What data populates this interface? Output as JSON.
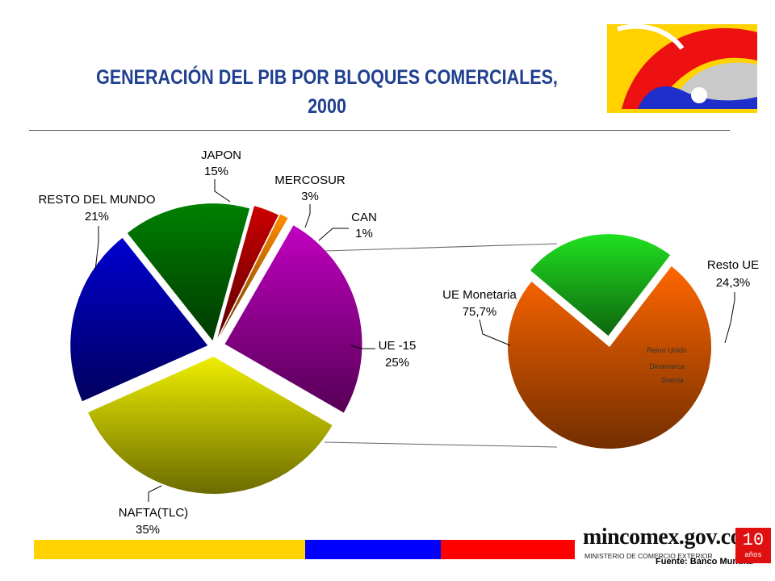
{
  "title_line1": "GENERACIÓN DEL PIB POR BLOQUES COMERCIALES,",
  "title_line2": "2000",
  "source": "Fuente: Banco Mundial",
  "site": "mincomex.gov.co",
  "ministry": "MINISTERIO DE COMERCIO EXTERIOR",
  "badge_number": "10",
  "badge_text": "años",
  "footer_colors": [
    "#FFD200",
    "#0000FF",
    "#FF0000"
  ],
  "chart_data": [
    {
      "type": "pie",
      "title": "GENERACIÓN DEL PIB POR BLOQUES COMERCIALES, 2000",
      "slices": [
        {
          "name": "UE -15",
          "value": 25,
          "label": "25%",
          "color": "#C000C0"
        },
        {
          "name": "NAFTA(TLC)",
          "value": 35,
          "label": "35%",
          "color": "#EEEE00"
        },
        {
          "name": "RESTO DEL MUNDO",
          "value": 21,
          "label": "21%",
          "color": "#0000D0"
        },
        {
          "name": "JAPON",
          "value": 15,
          "label": "15%",
          "color": "#008000"
        },
        {
          "name": "MERCOSUR",
          "value": 3,
          "label": "3%",
          "color": "#CC0000"
        },
        {
          "name": "CAN",
          "value": 1,
          "label": "1%",
          "color": "#FF8C00"
        }
      ]
    },
    {
      "type": "pie",
      "title": "UE -15",
      "slices": [
        {
          "name": "UE Monetaria",
          "value": 75.7,
          "label": "75,7%",
          "color": "#FF6600"
        },
        {
          "name": "Resto UE",
          "value": 24.3,
          "label": "24,3%",
          "color": "#20E020",
          "members": [
            "Reino Unido",
            "Dinamarca",
            "Suecia"
          ]
        }
      ]
    }
  ]
}
